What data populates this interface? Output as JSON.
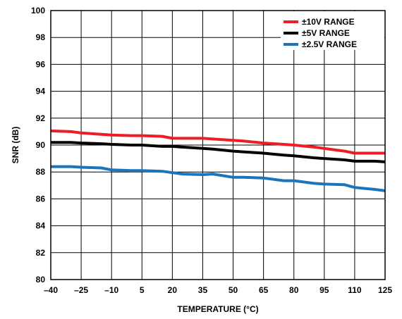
{
  "chart_data": {
    "type": "line",
    "title": "",
    "xlabel": "TEMPERATURE (°C)",
    "ylabel": "SNR (dB)",
    "xlim": [
      -40,
      125
    ],
    "ylim": [
      80,
      100
    ],
    "x_ticks": [
      -40,
      -25,
      -10,
      5,
      20,
      35,
      50,
      65,
      80,
      95,
      110,
      125
    ],
    "y_ticks": [
      80,
      82,
      84,
      86,
      88,
      90,
      92,
      94,
      96,
      98,
      100
    ],
    "x_tick_labels": [
      "–40",
      "–25",
      "–10",
      "5",
      "20",
      "35",
      "50",
      "65",
      "80",
      "95",
      "110",
      "125"
    ],
    "y_tick_labels": [
      "80",
      "82",
      "84",
      "86",
      "88",
      "90",
      "92",
      "94",
      "96",
      "98",
      "100"
    ],
    "grid": true,
    "legend_position": "top-right",
    "x": [
      -40,
      -30,
      -25,
      -15,
      -10,
      0,
      5,
      15,
      20,
      25,
      35,
      40,
      50,
      55,
      65,
      75,
      80,
      90,
      95,
      105,
      110,
      120,
      125
    ],
    "series": [
      {
        "name": "±10V RANGE",
        "color": "#ee1c25",
        "values": [
          91.05,
          91.0,
          90.9,
          90.8,
          90.75,
          90.7,
          90.7,
          90.65,
          90.5,
          90.5,
          90.5,
          90.45,
          90.35,
          90.3,
          90.15,
          90.05,
          90.0,
          89.85,
          89.75,
          89.55,
          89.4,
          89.4,
          89.4
        ]
      },
      {
        "name": "±5V RANGE",
        "color": "#000000",
        "values": [
          90.2,
          90.2,
          90.15,
          90.1,
          90.05,
          90.0,
          90.0,
          89.9,
          89.9,
          89.85,
          89.75,
          89.7,
          89.55,
          89.5,
          89.4,
          89.25,
          89.2,
          89.05,
          89.0,
          88.9,
          88.8,
          88.8,
          88.75
        ]
      },
      {
        "name": "±2.5V RANGE",
        "color": "#1a75bc",
        "values": [
          88.4,
          88.4,
          88.35,
          88.3,
          88.15,
          88.1,
          88.1,
          88.05,
          87.95,
          87.85,
          87.8,
          87.85,
          87.6,
          87.6,
          87.55,
          87.35,
          87.35,
          87.15,
          87.1,
          87.05,
          86.85,
          86.7,
          86.6
        ]
      }
    ]
  }
}
